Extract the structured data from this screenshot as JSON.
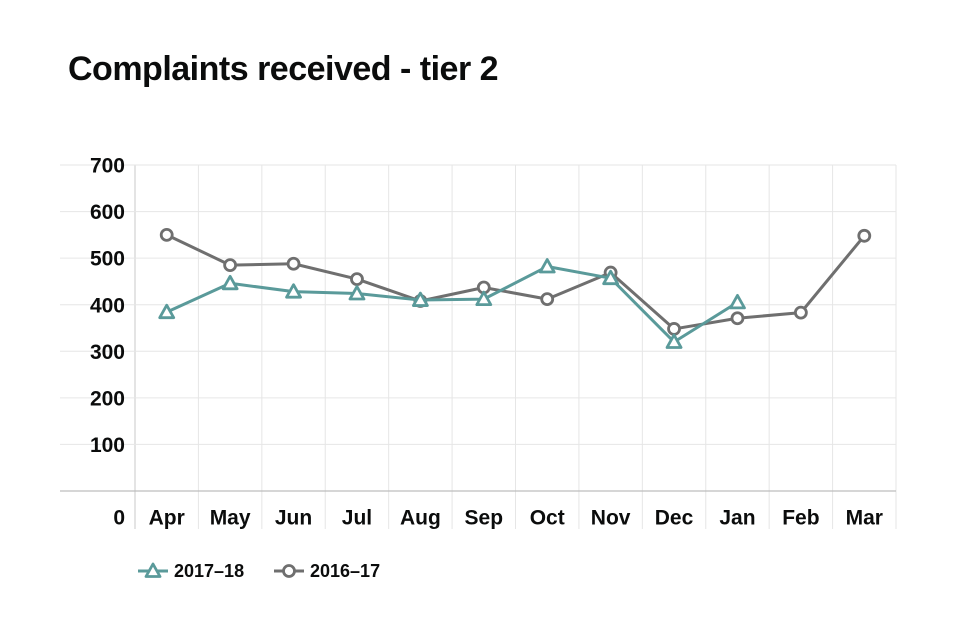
{
  "chart_data": {
    "type": "line",
    "title": "Complaints received - tier 2",
    "xlabel": "",
    "ylabel": "",
    "categories": [
      "Apr",
      "May",
      "Jun",
      "Jul",
      "Aug",
      "Sep",
      "Oct",
      "Nov",
      "Dec",
      "Jan",
      "Feb",
      "Mar"
    ],
    "yticks": [
      0,
      100,
      200,
      300,
      400,
      500,
      600,
      700
    ],
    "ylim": [
      -50,
      700
    ],
    "grid": true,
    "legend_position": "bottom-left",
    "series": [
      {
        "name": "2017–18",
        "color": "#5a9a9a",
        "marker": "triangle",
        "values": [
          384,
          446,
          428,
          424,
          410,
          412,
          482,
          457,
          320,
          405,
          null,
          null
        ]
      },
      {
        "name": "2016–17",
        "color": "#6f6f6f",
        "marker": "circle",
        "values": [
          550,
          485,
          488,
          455,
          408,
          437,
          412,
          469,
          348,
          371,
          383,
          548
        ]
      }
    ]
  }
}
